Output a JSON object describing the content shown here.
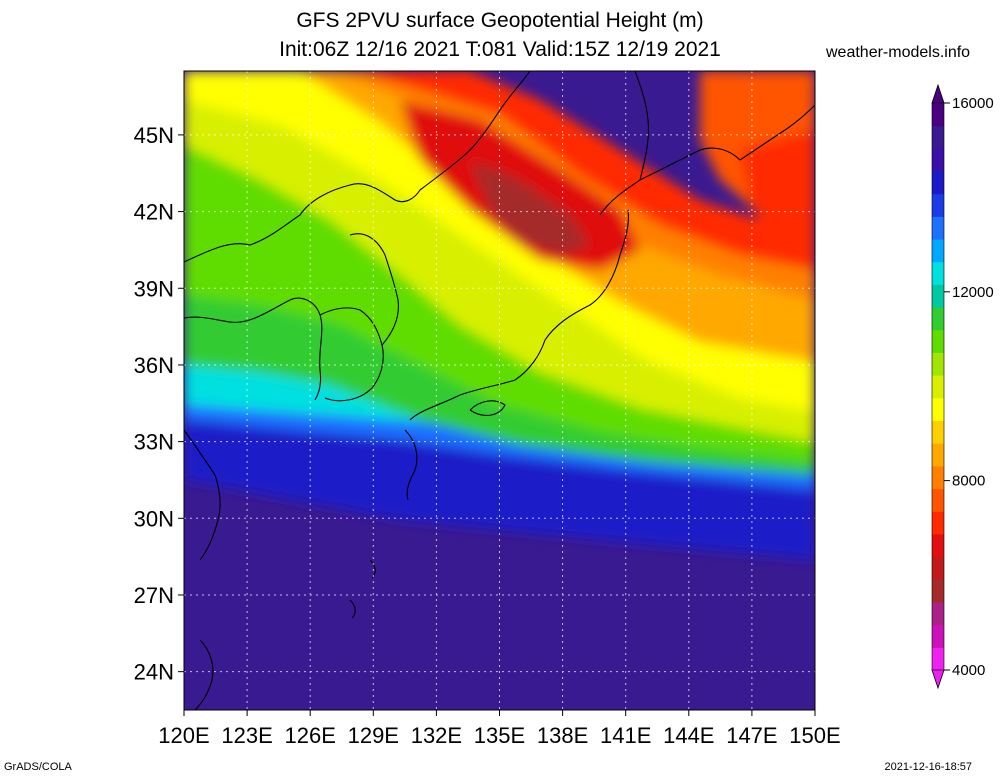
{
  "header": {
    "title_line1": "GFS 2PVU surface Geopotential Height (m)",
    "title_line2": "Init:06Z 12/16 2021 T:081 Valid:15Z 12/19 2021",
    "site": "weather-models.info"
  },
  "footer": {
    "left": "GrADS/COLA",
    "right": "2021-12-16-18:57"
  },
  "map": {
    "lat_labels": [
      "45N",
      "42N",
      "39N",
      "36N",
      "33N",
      "30N",
      "27N",
      "24N"
    ],
    "lon_labels": [
      "120E",
      "123E",
      "126E",
      "129E",
      "132E",
      "135E",
      "138E",
      "141E",
      "144E",
      "147E",
      "150E"
    ],
    "lat_values": [
      45,
      42,
      39,
      36,
      33,
      30,
      27,
      24
    ],
    "lon_values": [
      120,
      123,
      126,
      129,
      132,
      135,
      138,
      141,
      144,
      147,
      150
    ],
    "lat_range": [
      22.5,
      47.5
    ],
    "lon_range": [
      120,
      150
    ]
  },
  "colorbar": {
    "labels": [
      "16000",
      "12000",
      "8000",
      "4000"
    ],
    "colors": [
      "#ee22ee",
      "#cc11bb",
      "#aa2288",
      "#a52a2a",
      "#c11a1a",
      "#e01010",
      "#ff2a00",
      "#ff5500",
      "#ff8000",
      "#ffa800",
      "#ffd000",
      "#ffff00",
      "#d8f000",
      "#a0e600",
      "#60dd00",
      "#30cc30",
      "#00c8a0",
      "#00e0e0",
      "#00a8ff",
      "#1e70ff",
      "#1a3ce8",
      "#1a1ac8",
      "#3a10a8",
      "#3a1a90",
      "#4b0082"
    ]
  }
}
